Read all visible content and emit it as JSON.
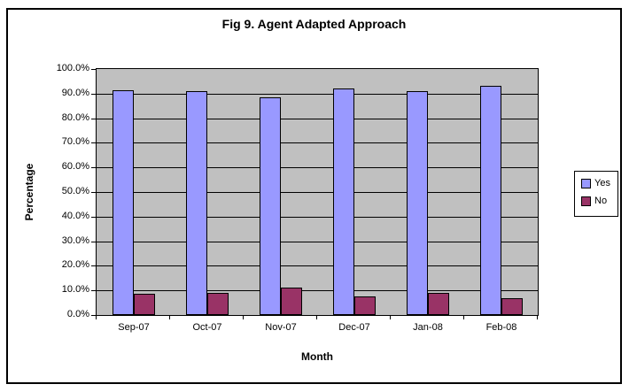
{
  "chart_data": {
    "type": "bar",
    "title": "Fig 9. Agent Adapted Approach",
    "xlabel": "Month",
    "ylabel": "Percentage",
    "categories": [
      "Sep-07",
      "Oct-07",
      "Nov-07",
      "Dec-07",
      "Jan-08",
      "Feb-08"
    ],
    "series": [
      {
        "name": "Yes",
        "color": "#9999FF",
        "border_color": "#000000",
        "values": [
          91.5,
          91.0,
          88.5,
          92.0,
          91.0,
          93.0
        ]
      },
      {
        "name": "No",
        "color": "#993366",
        "border_color": "#000000",
        "values": [
          8.5,
          9.0,
          11.0,
          7.5,
          9.0,
          7.0
        ]
      }
    ],
    "ylim": [
      0,
      100
    ],
    "yticks": [
      "0.0%",
      "10.0%",
      "20.0%",
      "30.0%",
      "40.0%",
      "50.0%",
      "60.0%",
      "70.0%",
      "80.0%",
      "90.0%",
      "100.0%"
    ],
    "grid": true,
    "gridline_color": "#000000",
    "plot_bg_color": "#C0C0C0",
    "legend_position": "right"
  }
}
